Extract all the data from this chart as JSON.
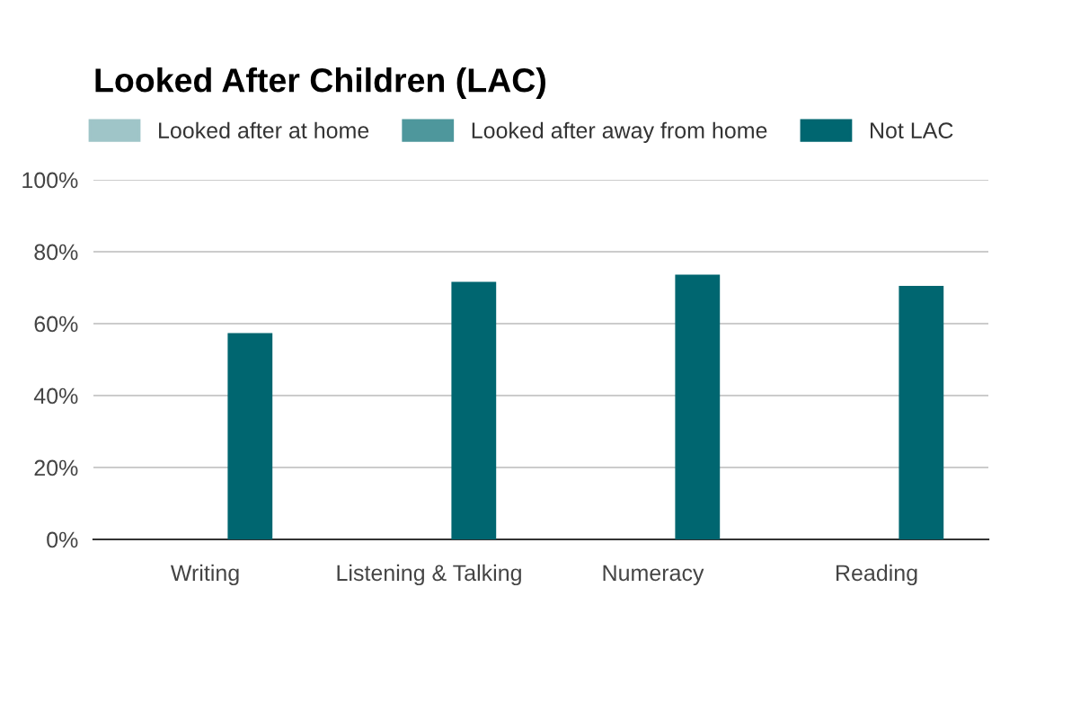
{
  "chart_data": {
    "type": "bar",
    "title": "Looked After Children (LAC)",
    "categories": [
      "Writing",
      "Listening & Talking",
      "Numeracy",
      "Reading"
    ],
    "series": [
      {
        "name": "Looked after at home",
        "color": "#9fc5c8",
        "values": [
          null,
          null,
          null,
          null
        ]
      },
      {
        "name": "Looked after away from home",
        "color": "#4e979c",
        "values": [
          null,
          null,
          null,
          null
        ]
      },
      {
        "name": "Not LAC",
        "color": "#006670",
        "values": [
          57.4,
          71.6,
          73.6,
          70.5
        ]
      }
    ],
    "ylim": [
      0,
      100
    ],
    "yticks": [
      {
        "value": 0,
        "label": "0%"
      },
      {
        "value": 20,
        "label": "20%"
      },
      {
        "value": 40,
        "label": "40%"
      },
      {
        "value": 60,
        "label": "60%"
      },
      {
        "value": 80,
        "label": "80%"
      },
      {
        "value": 100,
        "label": "100%"
      }
    ],
    "grid": "y",
    "legend": "top left"
  }
}
